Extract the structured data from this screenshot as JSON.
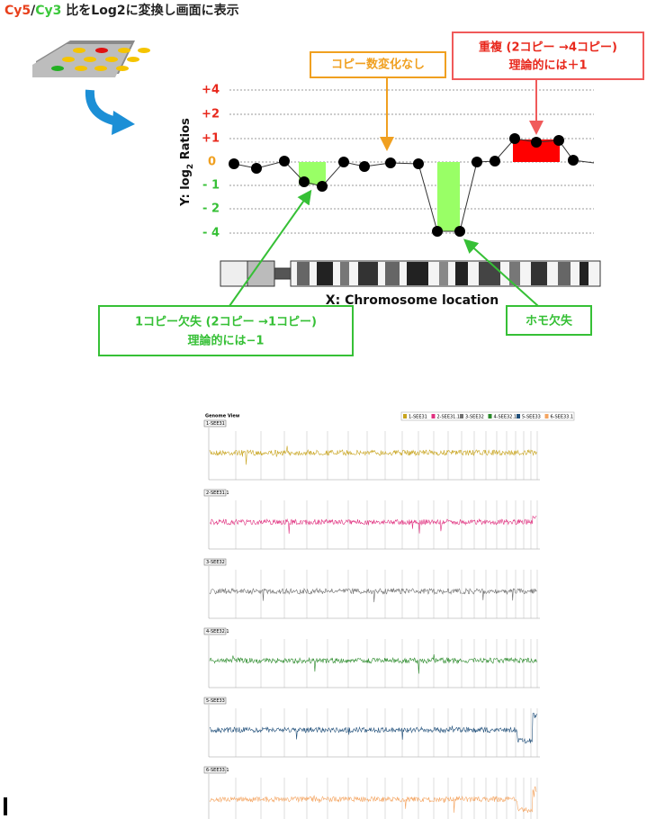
{
  "title": {
    "cy5": "Cy5",
    "slash": "/",
    "cy3": "Cy3",
    "rest": " 比をLog2に変換し画面に表示"
  },
  "schematic": {
    "y_axis_label": {
      "main": "Y: log",
      "sub": "2",
      "tail": " Ratios"
    },
    "y_ticks": [
      "+4",
      "+2",
      "+1",
      "0",
      "- 1",
      "- 2",
      "- 4"
    ],
    "x_axis_label": "X: Chromosome location",
    "callouts": {
      "no_change": "コピー数変化なし",
      "duplication": {
        "line1": "重複 (2コピー →4コピー)",
        "line2": "理論的には＋1"
      },
      "single_loss": {
        "line1": "1コピー欠失 (2コピー →1コピー)",
        "line2": "理論的には−1"
      },
      "homo_loss": "ホモ欠失"
    }
  },
  "genome_view": {
    "title": "Genome View",
    "tracks": [
      "1-SEE31",
      "2-SEE31.1",
      "3-SEE32",
      "4-SEE32.1",
      "5-SEE33",
      "6-SEE33.1"
    ]
  }
}
